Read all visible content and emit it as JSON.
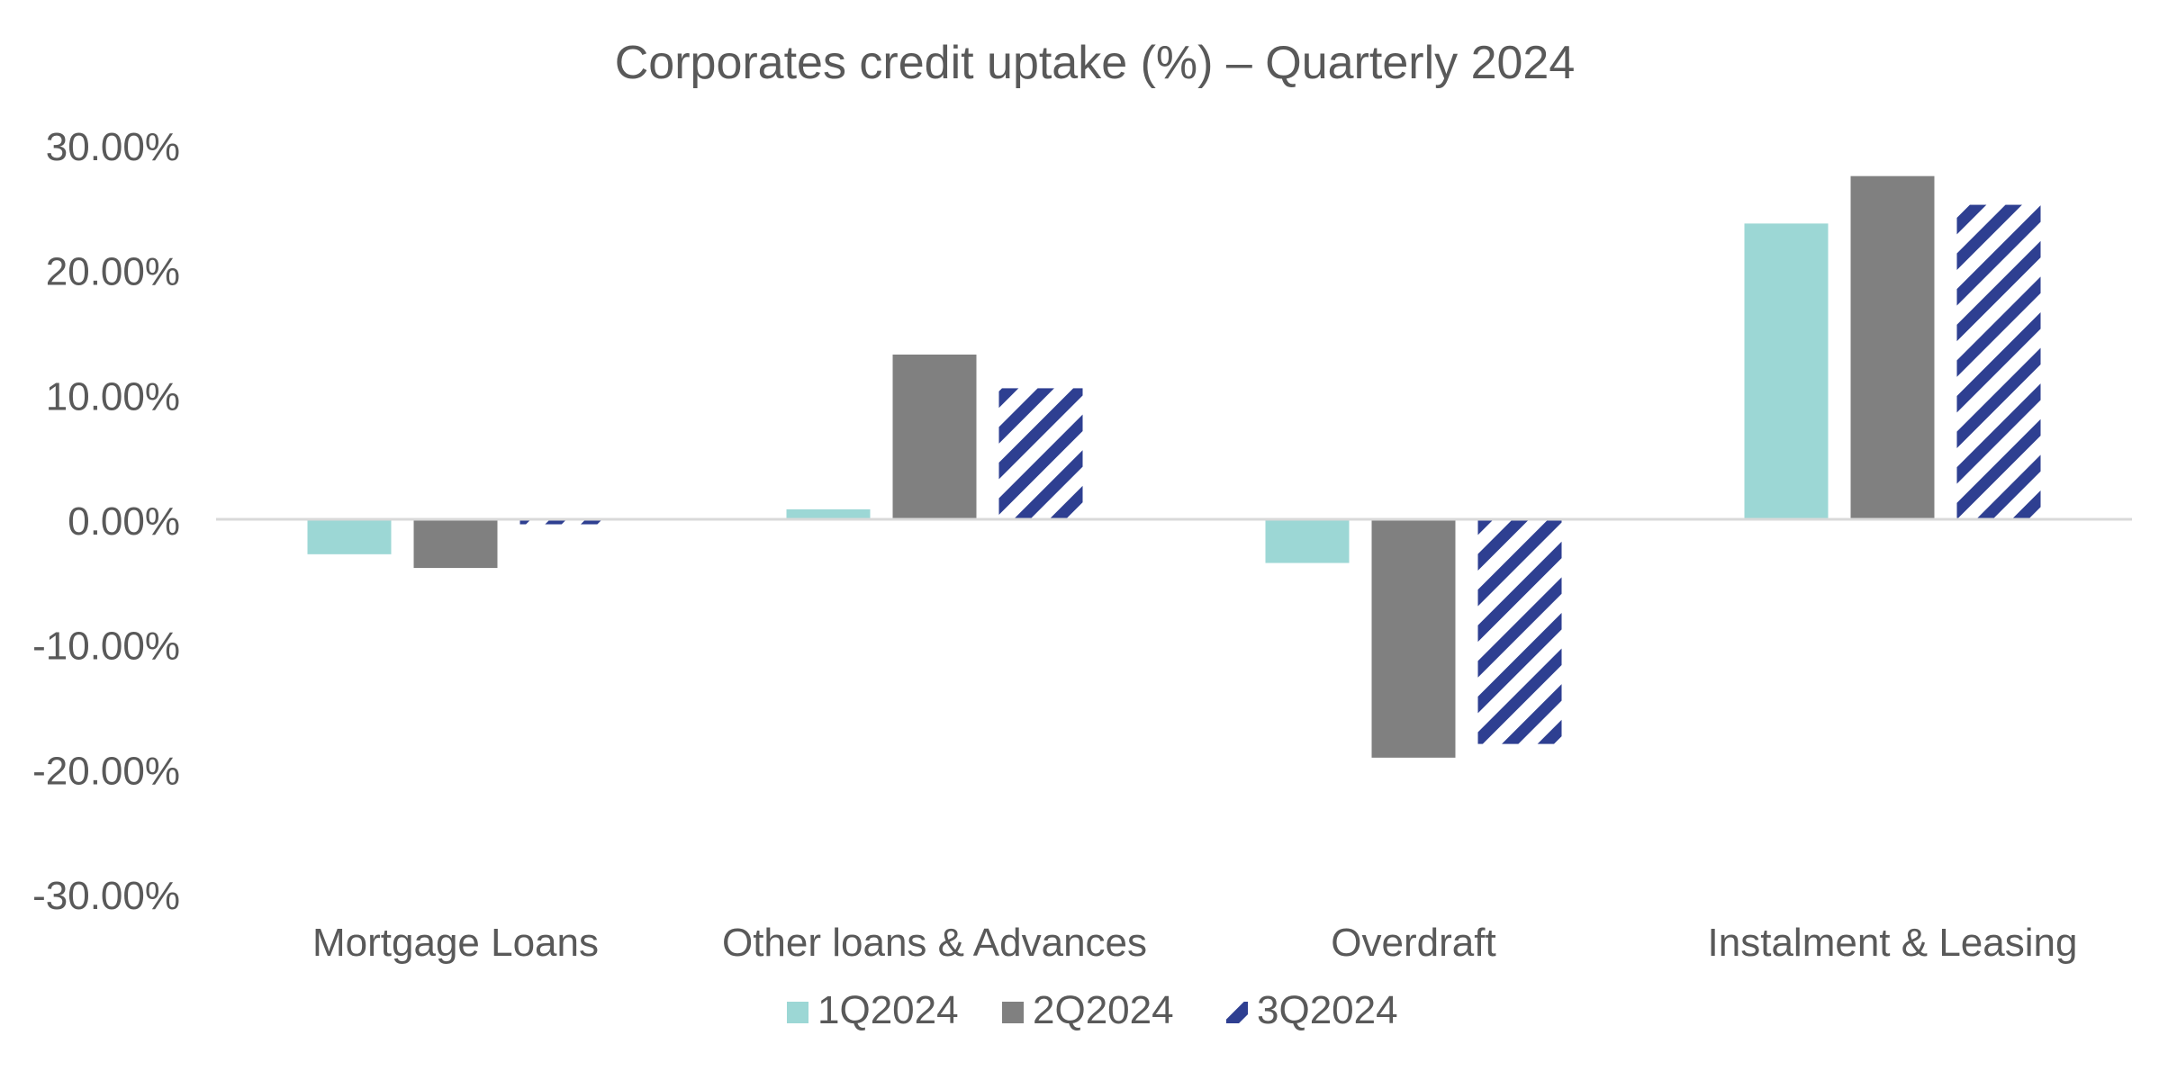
{
  "chart_data": {
    "type": "bar",
    "title": "Corporates credit uptake (%) – Quarterly 2024",
    "xlabel": "",
    "ylabel": "",
    "categories": [
      "Mortgage Loans",
      "Other loans & Advances",
      "Overdraft",
      "Instalment & Leasing"
    ],
    "series": [
      {
        "name": "1Q2024",
        "values": [
          -2.8,
          0.8,
          -3.5,
          23.7
        ],
        "color": "#9cd7d5",
        "fill": "solid"
      },
      {
        "name": "2Q2024",
        "values": [
          -3.9,
          13.2,
          -19.1,
          27.5
        ],
        "color": "#808080",
        "fill": "solid"
      },
      {
        "name": "3Q2024",
        "values": [
          -0.4,
          10.5,
          -18.0,
          25.2
        ],
        "color": "#2e3f91",
        "fill": "diagonal-stripes"
      }
    ],
    "ylim": [
      -30,
      30
    ],
    "yticks": [
      30,
      20,
      10,
      0,
      -10,
      -20,
      -30
    ],
    "ytick_labels": [
      "30.00%",
      "20.00%",
      "10.00%",
      "0.00%",
      "-10.00%",
      "-20.00%",
      "-30.00%"
    ],
    "grid": false,
    "legend_position": "bottom"
  }
}
